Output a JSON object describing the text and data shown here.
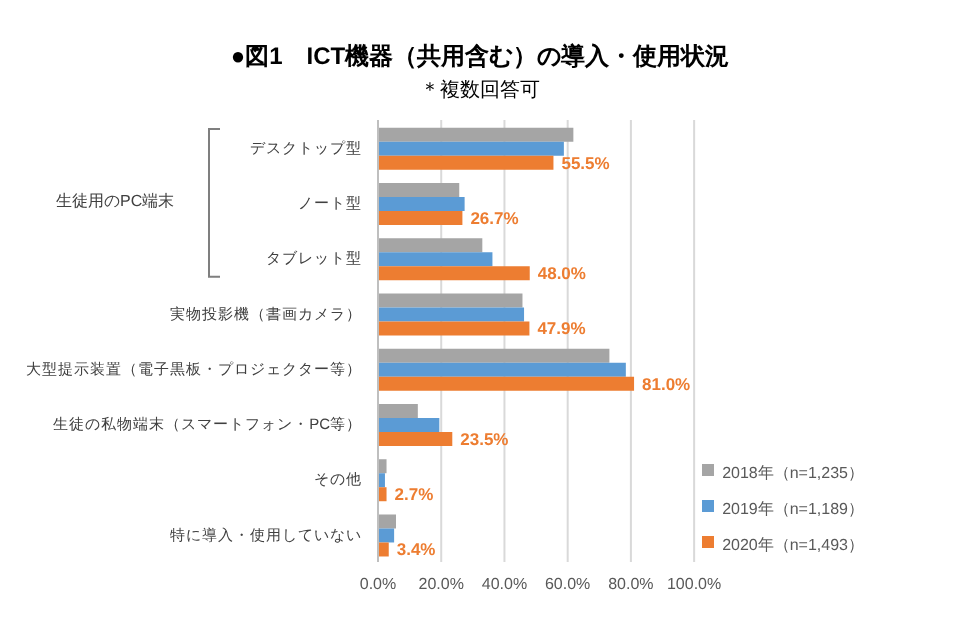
{
  "chart_data": {
    "type": "bar",
    "orientation": "horizontal",
    "title": "●図1　ICT機器（共用含む）の導入・使用状況",
    "subtitle": "＊複数回答可",
    "categories": [
      "デスクトップ型",
      "ノート型",
      "タブレット型",
      "実物投影機（書画カメラ）",
      "大型提示装置（電子黒板・プロジェクター等）",
      "生徒の私物端末（スマートフォン・PC等）",
      "その他",
      "特に導入・使用していない"
    ],
    "series": [
      {
        "name": "2018年（n=1,235）",
        "color": "#a5a5a5",
        "values": [
          61.8,
          25.7,
          33.0,
          45.7,
          73.2,
          12.6,
          2.7,
          5.7
        ]
      },
      {
        "name": "2019年（n=1,189）",
        "color": "#5b9bd5",
        "values": [
          58.8,
          27.4,
          36.2,
          46.2,
          78.4,
          19.4,
          2.2,
          5.1
        ]
      },
      {
        "name": "2020年（n=1,493）",
        "color": "#ed7d31",
        "values": [
          55.5,
          26.7,
          48.0,
          47.9,
          81.0,
          23.5,
          2.7,
          3.4
        ],
        "value_labels": [
          "55.5%",
          "26.7%",
          "48.0%",
          "47.9%",
          "81.0%",
          "23.5%",
          "2.7%",
          "3.4%"
        ]
      }
    ],
    "xlim": [
      0,
      100
    ],
    "xticks": [
      {
        "value": 0,
        "label": "0.0%"
      },
      {
        "value": 20,
        "label": "20.0%"
      },
      {
        "value": 40,
        "label": "40.0%"
      },
      {
        "value": 60,
        "label": "60.0%"
      },
      {
        "value": 80,
        "label": "80.0%"
      },
      {
        "value": 100,
        "label": "100.0%"
      }
    ],
    "grid": "x",
    "legend": "bottom right",
    "annotations": [
      "生徒用のPC端末"
    ]
  }
}
